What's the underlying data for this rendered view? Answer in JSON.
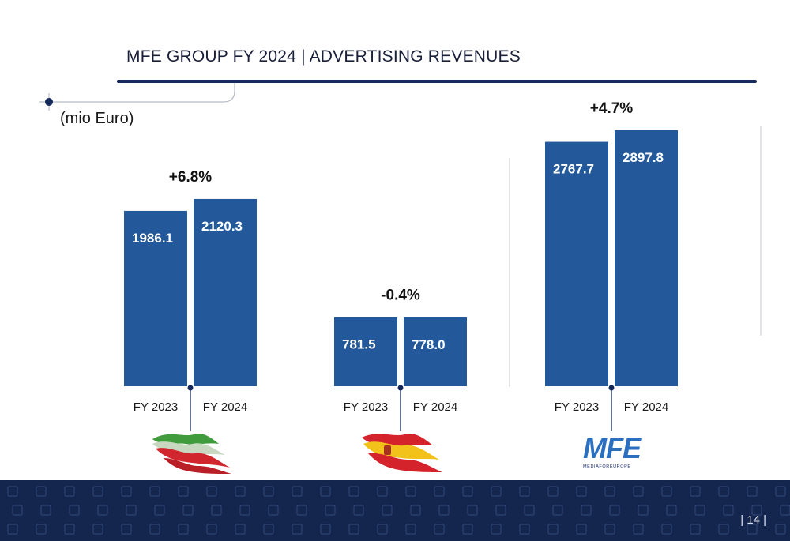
{
  "slide": {
    "title": "MFE GROUP FY 2024 | ADVERTISING REVENUES",
    "unit_label": "(mio Euro)",
    "page_number": "| 14 |",
    "brand_color": "#23599a",
    "accent_color": "#14295c",
    "footer_color": "#14264e"
  },
  "logos": {
    "italy": "italy-flag-logo",
    "spain": "spain-flag-logo",
    "mfe": {
      "name": "mfe-logo",
      "text": "MFE",
      "subtitle": "MEDIAFOREUROPE"
    }
  },
  "chart_data": {
    "type": "bar",
    "series_color": "#23599a",
    "groups": [
      {
        "categories": [
          "FY 2023",
          "FY 2024"
        ],
        "values": [
          1986.1,
          2120.3
        ],
        "value_labels": [
          "1986.1",
          "2120.3"
        ],
        "change_label": "+6.8%"
      },
      {
        "categories": [
          "FY 2023",
          "FY 2024"
        ],
        "values": [
          781.5,
          778.0
        ],
        "value_labels": [
          "781.5",
          "778.0"
        ],
        "change_label": "-0.4%"
      },
      {
        "categories": [
          "FY 2023",
          "FY 2024"
        ],
        "values": [
          2767.7,
          2897.8
        ],
        "value_labels": [
          "2767.7",
          "2897.8"
        ],
        "change_label": "+4.7%"
      }
    ]
  }
}
